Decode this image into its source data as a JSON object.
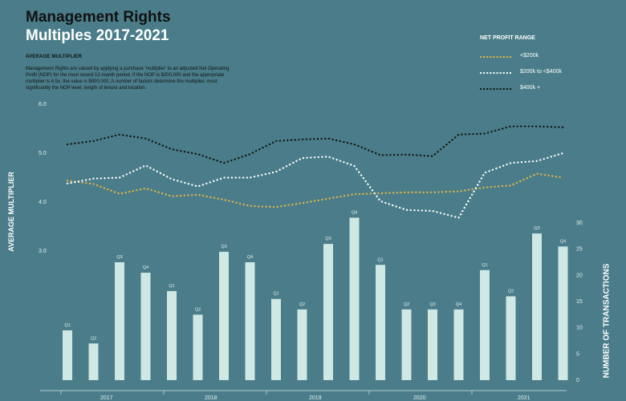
{
  "title": {
    "line1": "Management Rights",
    "line2": "Multiples 2017-2021"
  },
  "subheading": "AVERAGE MULTIPLIER",
  "description": "Management Rights are valued by applying a purchase ‘multiplier’ to an adjusted Net Operating Profit (NOP) for the most recent 12-month period. If the NOP is $200,000 and the appropriate multiplier is 4.5x, the value is $900,000. A number of factors determine the multiplier, most significantly the NOP level, length of tenure and location.",
  "legend": {
    "title": "NET PROFIT RANGE",
    "items": [
      {
        "label": "<$200k",
        "color": "#e3b548"
      },
      {
        "label": "$200k to <$400k",
        "color": "#ffffff"
      },
      {
        "label": "$400k +",
        "color": "#111111"
      }
    ]
  },
  "chart_data": {
    "type": "bar+line",
    "categories": [
      "Q1",
      "Q2",
      "Q3",
      "Q4",
      "Q1",
      "Q2",
      "Q3",
      "Q4",
      "Q1",
      "Q2",
      "Q3",
      "Q4",
      "Q1",
      "Q2",
      "Q3",
      "Q4",
      "Q1",
      "Q2",
      "Q3",
      "Q4"
    ],
    "years": [
      "2017",
      "2018",
      "2019",
      "2020",
      "2021"
    ],
    "bars": {
      "name": "Number of transactions",
      "color": "#cfe8e4",
      "values": [
        9.5,
        7,
        22.5,
        20.5,
        17,
        12.5,
        24.5,
        22.5,
        15.5,
        13.5,
        26,
        31,
        22,
        13.5,
        13.5,
        13.5,
        21,
        16,
        28,
        25.5
      ]
    },
    "series": [
      {
        "name": "<$200k",
        "color": "#e3b548",
        "values": [
          4.44,
          4.37,
          4.17,
          4.28,
          4.12,
          4.15,
          4.05,
          3.92,
          3.9,
          3.98,
          4.07,
          4.16,
          4.18,
          4.2,
          4.2,
          4.22,
          4.3,
          4.34,
          4.58,
          4.5
        ]
      },
      {
        "name": "$200k to <$400k",
        "color": "#ffffff",
        "values": [
          4.38,
          4.48,
          4.5,
          4.75,
          4.47,
          4.32,
          4.5,
          4.5,
          4.62,
          4.9,
          4.93,
          4.74,
          4.02,
          3.84,
          3.82,
          3.68,
          4.6,
          4.8,
          4.84,
          5.0
        ]
      },
      {
        "name": "$400k +",
        "color": "#111111",
        "values": [
          5.18,
          5.25,
          5.38,
          5.3,
          5.08,
          4.98,
          4.8,
          4.98,
          5.25,
          5.28,
          5.3,
          5.18,
          4.96,
          4.97,
          4.94,
          5.38,
          5.4,
          5.55,
          5.55,
          5.53
        ]
      }
    ],
    "y_left": {
      "label": "AVERAGE MULTIPLIER",
      "ticks": [
        "6.0",
        "5.0",
        "4.0",
        "3.0"
      ],
      "range": [
        3.0,
        6.0
      ]
    },
    "y_right": {
      "label": "NUMBER OF TRANSACTIONS",
      "ticks": [
        "30",
        "25",
        "20",
        "15",
        "10",
        "5",
        "0"
      ],
      "range": [
        0,
        30
      ]
    },
    "grid": false,
    "legend_position": "top-right"
  }
}
